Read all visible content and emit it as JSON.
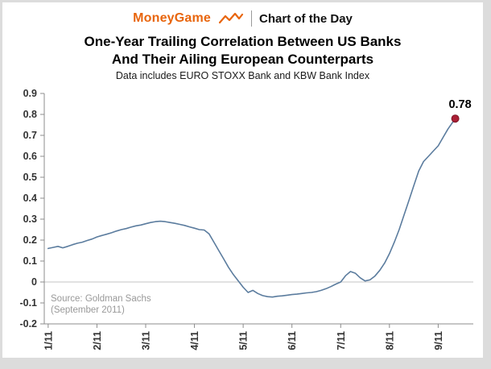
{
  "header": {
    "brand": "MoneyGame",
    "brand_color": "#e8650d",
    "title": "Chart of the Day"
  },
  "chart_data": {
    "type": "line",
    "title_line1": "One-Year Trailing Correlation Between US Banks",
    "title_line2": "And Their Ailing European Counterparts",
    "subtitle": "Data includes EURO STOXX Bank and KBW Bank Index",
    "xlim": [
      0.92,
      9.72
    ],
    "ylim": [
      -0.2,
      0.9
    ],
    "x_tick_labels": [
      "1/11",
      "2/11",
      "3/11",
      "4/11",
      "5/11",
      "6/11",
      "7/11",
      "8/11",
      "9/11"
    ],
    "x_tick_values": [
      1,
      2,
      3,
      4,
      5,
      6,
      7,
      8,
      9
    ],
    "y_tick_labels": [
      "0.9",
      "0.8",
      "0.7",
      "0.6",
      "0.5",
      "0.4",
      "0.3",
      "0.2",
      "0.1",
      "0",
      "-0.1",
      "-0.2"
    ],
    "y_tick_values": [
      0.9,
      0.8,
      0.7,
      0.6,
      0.5,
      0.4,
      0.3,
      0.2,
      0.1,
      0,
      -0.1,
      -0.2
    ],
    "grid": "zero-line-only",
    "legend": "none",
    "series": [
      {
        "name": "one-year trailing correlation (EURO STOXX Bank vs KBW Bank Index)",
        "color": "#5b7c9e",
        "x": [
          1.0,
          1.1,
          1.2,
          1.3,
          1.4,
          1.5,
          1.6,
          1.7,
          1.8,
          1.9,
          2.0,
          2.1,
          2.2,
          2.3,
          2.4,
          2.5,
          2.6,
          2.7,
          2.8,
          2.9,
          3.0,
          3.1,
          3.2,
          3.3,
          3.4,
          3.5,
          3.6,
          3.7,
          3.8,
          3.9,
          4.0,
          4.1,
          4.2,
          4.3,
          4.4,
          4.5,
          4.6,
          4.7,
          4.8,
          4.9,
          5.0,
          5.1,
          5.2,
          5.3,
          5.4,
          5.5,
          5.6,
          5.7,
          5.8,
          5.9,
          6.0,
          6.1,
          6.2,
          6.3,
          6.4,
          6.5,
          6.6,
          6.7,
          6.8,
          6.9,
          7.0,
          7.1,
          7.2,
          7.3,
          7.4,
          7.5,
          7.6,
          7.7,
          7.8,
          7.9,
          8.0,
          8.1,
          8.2,
          8.3,
          8.4,
          8.5,
          8.6,
          8.7,
          8.8,
          8.9,
          9.0,
          9.1,
          9.2,
          9.35
        ],
        "y": [
          0.16,
          0.165,
          0.17,
          0.163,
          0.17,
          0.178,
          0.185,
          0.19,
          0.198,
          0.205,
          0.215,
          0.222,
          0.228,
          0.235,
          0.243,
          0.25,
          0.255,
          0.262,
          0.268,
          0.272,
          0.278,
          0.284,
          0.288,
          0.29,
          0.288,
          0.284,
          0.28,
          0.275,
          0.27,
          0.263,
          0.257,
          0.25,
          0.248,
          0.23,
          0.19,
          0.15,
          0.11,
          0.07,
          0.035,
          0.005,
          -0.025,
          -0.05,
          -0.04,
          -0.055,
          -0.065,
          -0.07,
          -0.072,
          -0.068,
          -0.066,
          -0.063,
          -0.06,
          -0.058,
          -0.055,
          -0.052,
          -0.05,
          -0.046,
          -0.04,
          -0.032,
          -0.022,
          -0.01,
          0.0,
          0.03,
          0.05,
          0.042,
          0.02,
          0.005,
          0.01,
          0.028,
          0.055,
          0.09,
          0.135,
          0.19,
          0.25,
          0.32,
          0.39,
          0.46,
          0.53,
          0.575,
          0.6,
          0.625,
          0.65,
          0.69,
          0.73,
          0.78
        ]
      }
    ],
    "endpoint": {
      "x": 9.35,
      "y": 0.78,
      "label": "0.78",
      "dot_color": "#ab1f35"
    },
    "annotation": {
      "line1": "Source: Goldman Sachs",
      "line2": "(September 2011)",
      "color": "#999999"
    },
    "style": {
      "axis_color": "#8c8c8c",
      "zero_line_color": "#c6c6c6",
      "tick_label_color": "#333333",
      "line_width": 1.6
    }
  }
}
